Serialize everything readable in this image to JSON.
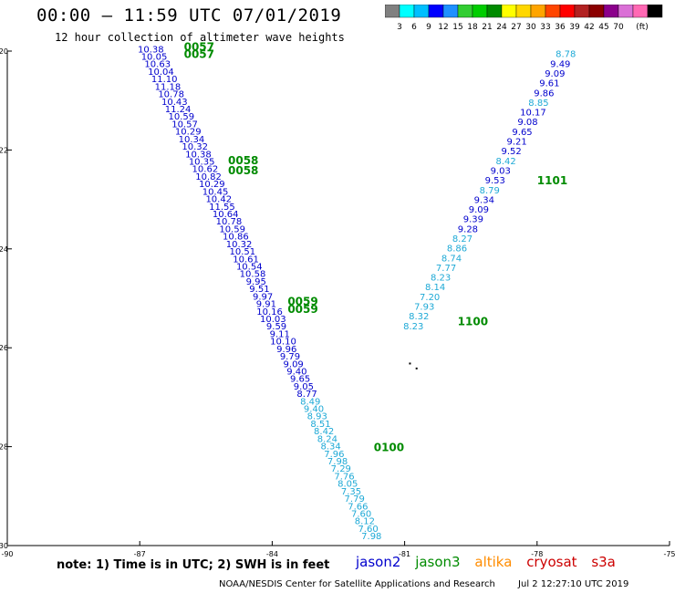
{
  "header": {
    "title": "00:00 — 11:59 UTC 07/01/2019",
    "subtitle": "12 hour collection of altimeter wave heights"
  },
  "colorbar": {
    "colors": [
      "#808080",
      "#00ffff",
      "#00bfff",
      "#0000ff",
      "#1e90ff",
      "#32cd32",
      "#00cd00",
      "#008b00",
      "#ffff00",
      "#ffd700",
      "#ffa500",
      "#ff4500",
      "#ff0000",
      "#b22222",
      "#8b0000",
      "#8b008b",
      "#da70d6",
      "#ff69b4",
      "#000000"
    ],
    "labels": [
      "3",
      "6",
      "9",
      "12",
      "15",
      "18",
      "21",
      "24",
      "27",
      "30",
      "33",
      "36",
      "39",
      "42",
      "45",
      "70",
      "(ft)"
    ]
  },
  "note": "note: 1) Time is in UTC; 2) SWH is in feet",
  "legend": [
    {
      "name": "jason2",
      "color": "#0000cd"
    },
    {
      "name": "jason3",
      "color": "#008b00"
    },
    {
      "name": "altika",
      "color": "#ff8c00"
    },
    {
      "name": "cryosat",
      "color": "#cc0000"
    },
    {
      "name": "s3a",
      "color": "#cc0000"
    }
  ],
  "footer": {
    "left": "NOAA/NESDIS Center for Satellite Applications and Research",
    "right": "Jul  2 12:27:10 UTC 2019"
  },
  "map": {
    "lon_range": [
      -90,
      -75
    ],
    "lat_range": [
      -30,
      -20
    ],
    "lon_ticks": [
      "-90",
      "-87",
      "-84",
      "-81",
      "-78",
      "-75"
    ],
    "lat_ticks": [
      "-20",
      "-22",
      "-24",
      "-26",
      "-28",
      "-30"
    ],
    "tracks": [
      {
        "name": "west-track",
        "start": [
          -86.75,
          -19.95
        ],
        "end": [
          -81.75,
          -29.8
        ],
        "values": [
          "10.38",
          "10.05",
          "10.63",
          "10.04",
          "11.10",
          "11.18",
          "10.78",
          "10.43",
          "11.24",
          "10.59",
          "10.57",
          "10.29",
          "10.34",
          "10.32",
          "10.38",
          "10.35",
          "10.62",
          "10.82",
          "10.29",
          "10.45",
          "10.42",
          "11.55",
          "10.64",
          "10.78",
          "10.59",
          "10.86",
          "10.32",
          "10.51",
          "10.61",
          "10.54",
          "10.58",
          "9.95",
          "9.51",
          "9.97",
          "9.91",
          "10.16",
          "10.03",
          "9.59",
          "9.11",
          "10.10",
          "9.96",
          "9.79",
          "9.09",
          "9.40",
          "9.65",
          "9.05",
          "8.77",
          "8.49",
          "9.40",
          "8.93",
          "8.51",
          "8.42",
          "8.24",
          "8.34",
          "7.96",
          "7.98",
          "7.29",
          "7.76",
          "8.05",
          "7.35",
          "7.79",
          "7.66",
          "7.60",
          "8.12",
          "7.60",
          "7.98"
        ],
        "colors_idx_light": [
          47,
          48,
          49,
          50,
          51,
          52,
          53,
          54,
          55,
          56,
          57,
          58,
          59,
          60,
          61,
          62,
          63,
          64,
          65
        ]
      },
      {
        "name": "east-track",
        "start": [
          -77.35,
          -20.05
        ],
        "end": [
          -80.8,
          -25.55
        ],
        "values": [
          "8.78",
          "9.49",
          "9.09",
          "9.61",
          "9.86",
          "8.85",
          "10.17",
          "9.08",
          "9.65",
          "9.21",
          "9.52",
          "8.42",
          "9.03",
          "9.53",
          "8.79",
          "9.34",
          "9.09",
          "9.39",
          "9.28",
          "8.27",
          "8.86",
          "8.74",
          "7.77",
          "8.23",
          "8.14",
          "7.20",
          "7.93",
          "8.32",
          "8.23"
        ],
        "light": [
          0,
          5,
          11,
          14,
          19,
          20,
          21,
          22,
          23,
          24,
          25,
          26,
          27,
          28
        ]
      }
    ],
    "time_labels": [
      {
        "text": "0057",
        "lon": -86.0,
        "lat": -19.9
      },
      {
        "text": "0057",
        "lon": -86.0,
        "lat": -20.05
      },
      {
        "text": "0058",
        "lon": -85.0,
        "lat": -22.2
      },
      {
        "text": "0058",
        "lon": -85.0,
        "lat": -22.4
      },
      {
        "text": "0059",
        "lon": -83.65,
        "lat": -25.05
      },
      {
        "text": "0059",
        "lon": -83.65,
        "lat": -25.2
      },
      {
        "text": "0100",
        "lon": -81.7,
        "lat": -28.0
      },
      {
        "text": "1101",
        "lon": -78.0,
        "lat": -22.6
      },
      {
        "text": "1100",
        "lon": -79.8,
        "lat": -25.45
      }
    ],
    "dots": [
      {
        "lon": -80.9,
        "lat": -26.3
      },
      {
        "lon": -80.75,
        "lat": -26.4
      }
    ]
  }
}
